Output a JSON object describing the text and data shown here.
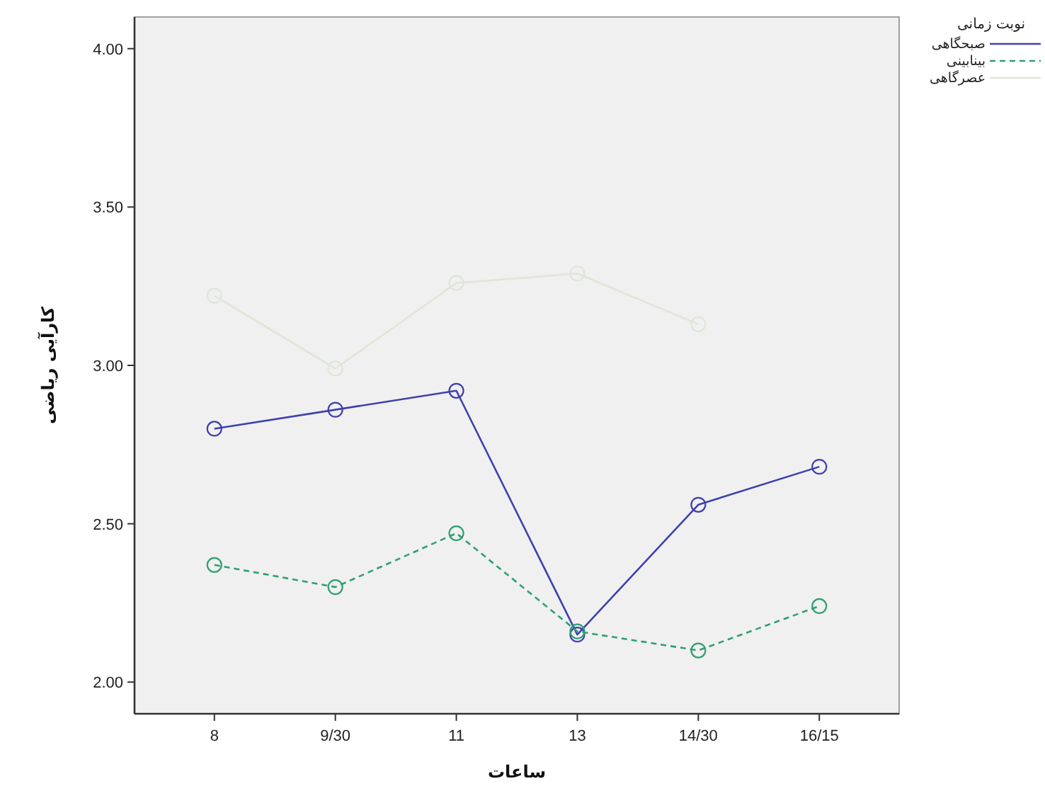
{
  "chart_data": {
    "type": "line",
    "xlabel": "ساعات",
    "ylabel": "کارآیی ریاضی",
    "legend_title": "نوبت زمانی",
    "categories": [
      "8",
      "9/30",
      "11",
      "13",
      "14/30",
      "16/15"
    ],
    "series": [
      {
        "name": "صبحگاهی",
        "color": "#4040b0",
        "line_style": "solid",
        "values": [
          2.8,
          2.86,
          2.92,
          2.15,
          2.56,
          2.68
        ]
      },
      {
        "name": "بینابینی",
        "color": "#30a070",
        "line_style": "dashed",
        "values": [
          2.37,
          2.3,
          2.47,
          2.16,
          2.1,
          2.24
        ]
      },
      {
        "name": "عصرگاهی",
        "color": "#dfe6d8",
        "line_style": "solid",
        "values": [
          3.22,
          2.99,
          3.26,
          3.29,
          3.13,
          null
        ]
      }
    ],
    "ylim": [
      1.9,
      4.1
    ],
    "yticks": [
      {
        "value": 2,
        "label": "2.00"
      },
      {
        "value": 2.5,
        "label": "2.50"
      },
      {
        "value": 3,
        "label": "3.00"
      },
      {
        "value": 3.5,
        "label": "3.50"
      },
      {
        "value": 4,
        "label": "4.00"
      }
    ],
    "legend": "right",
    "marker": "circle",
    "grid": false
  }
}
